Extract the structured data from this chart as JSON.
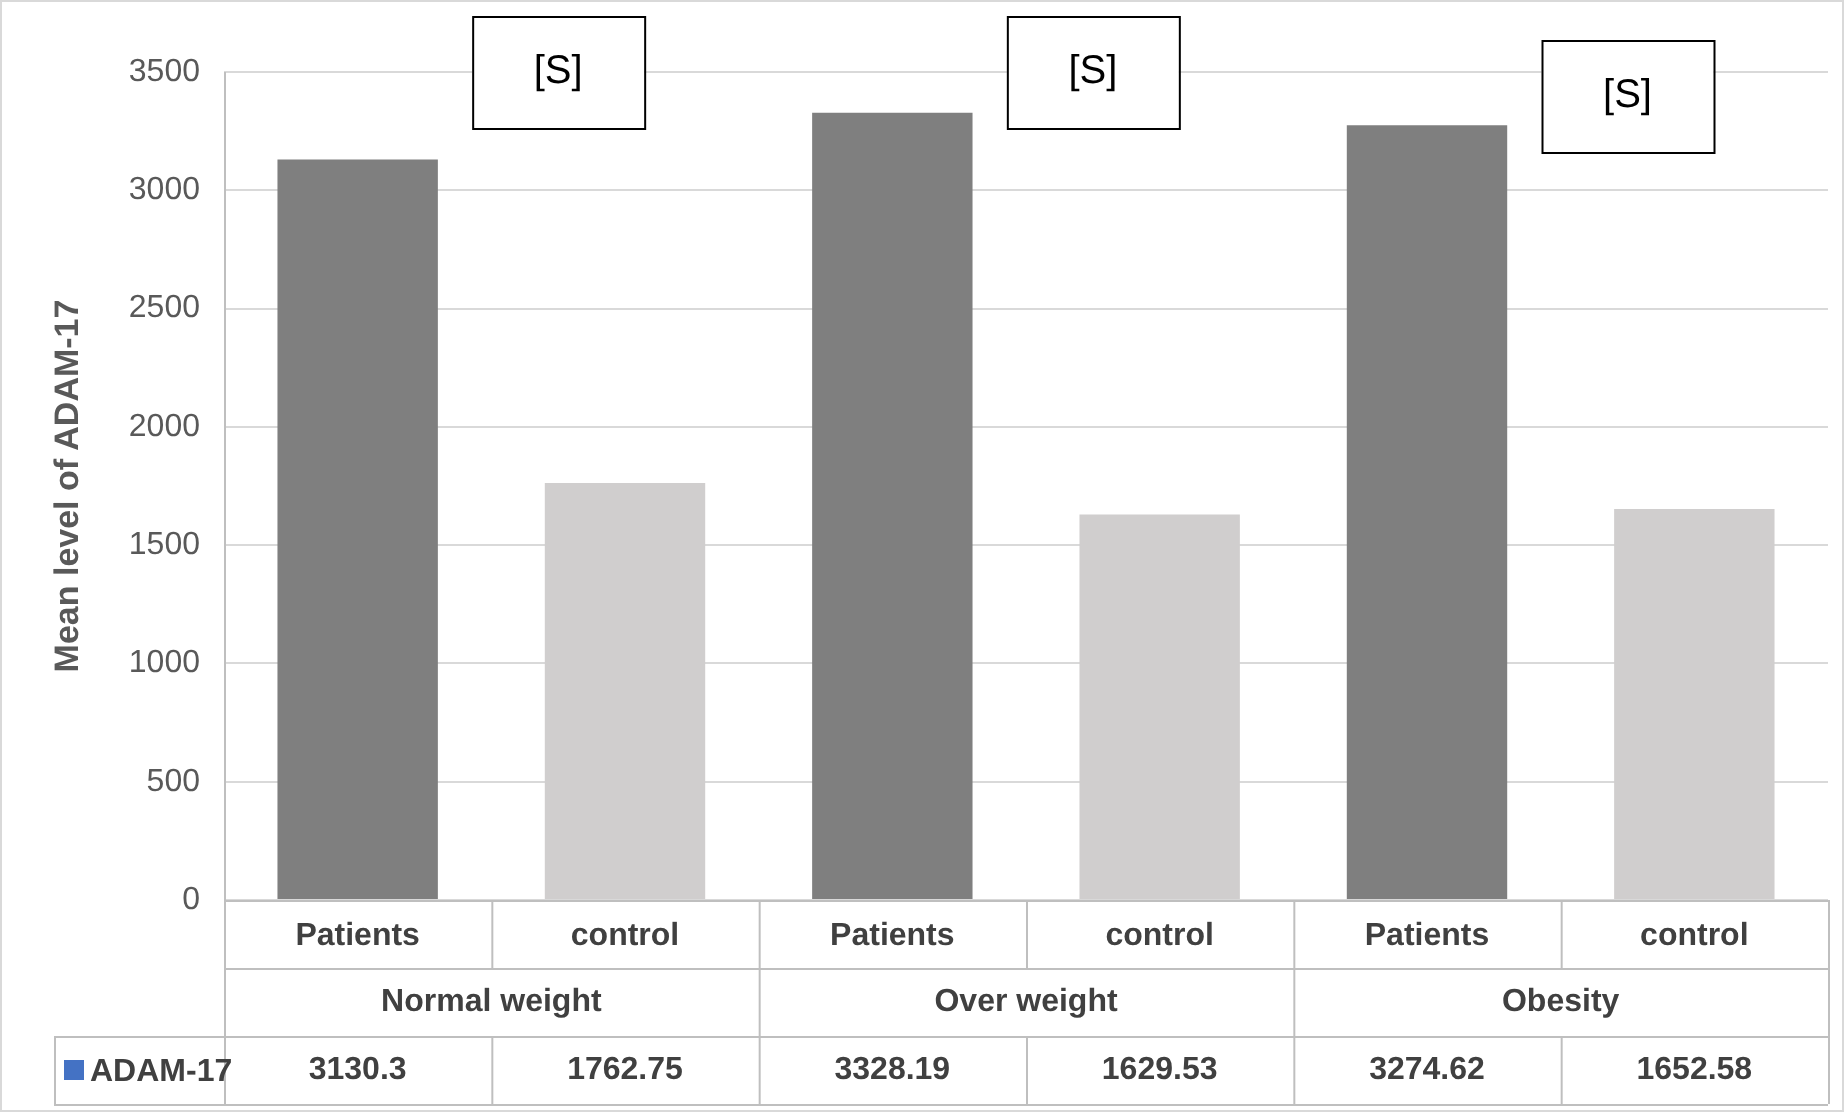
{
  "chart_data": {
    "type": "bar",
    "ylabel": "Mean level of ADAM-17",
    "categories": [
      "Patients",
      "control",
      "Patients",
      "control",
      "Patients",
      "control"
    ],
    "series": [
      {
        "name": "ADAM-17",
        "color": "#4472c4",
        "colors": [
          "#7f7f7f",
          "#d0cece",
          "#7f7f7f",
          "#d0cece",
          "#7f7f7f",
          "#d0cece"
        ],
        "values": [
          3130.3,
          1762.75,
          3328.19,
          1629.53,
          3274.62,
          1652.58
        ]
      }
    ],
    "ylim": [
      0,
      3500
    ],
    "yticks": [
      0,
      500,
      1000,
      1500,
      2000,
      2500,
      3000,
      3500
    ],
    "grid": "y",
    "legend": "bottom",
    "data_labels": true,
    "annotations": [
      "Normal weight",
      "Over weight",
      "Obesity",
      "[S]",
      "[S]",
      "[S]"
    ]
  }
}
